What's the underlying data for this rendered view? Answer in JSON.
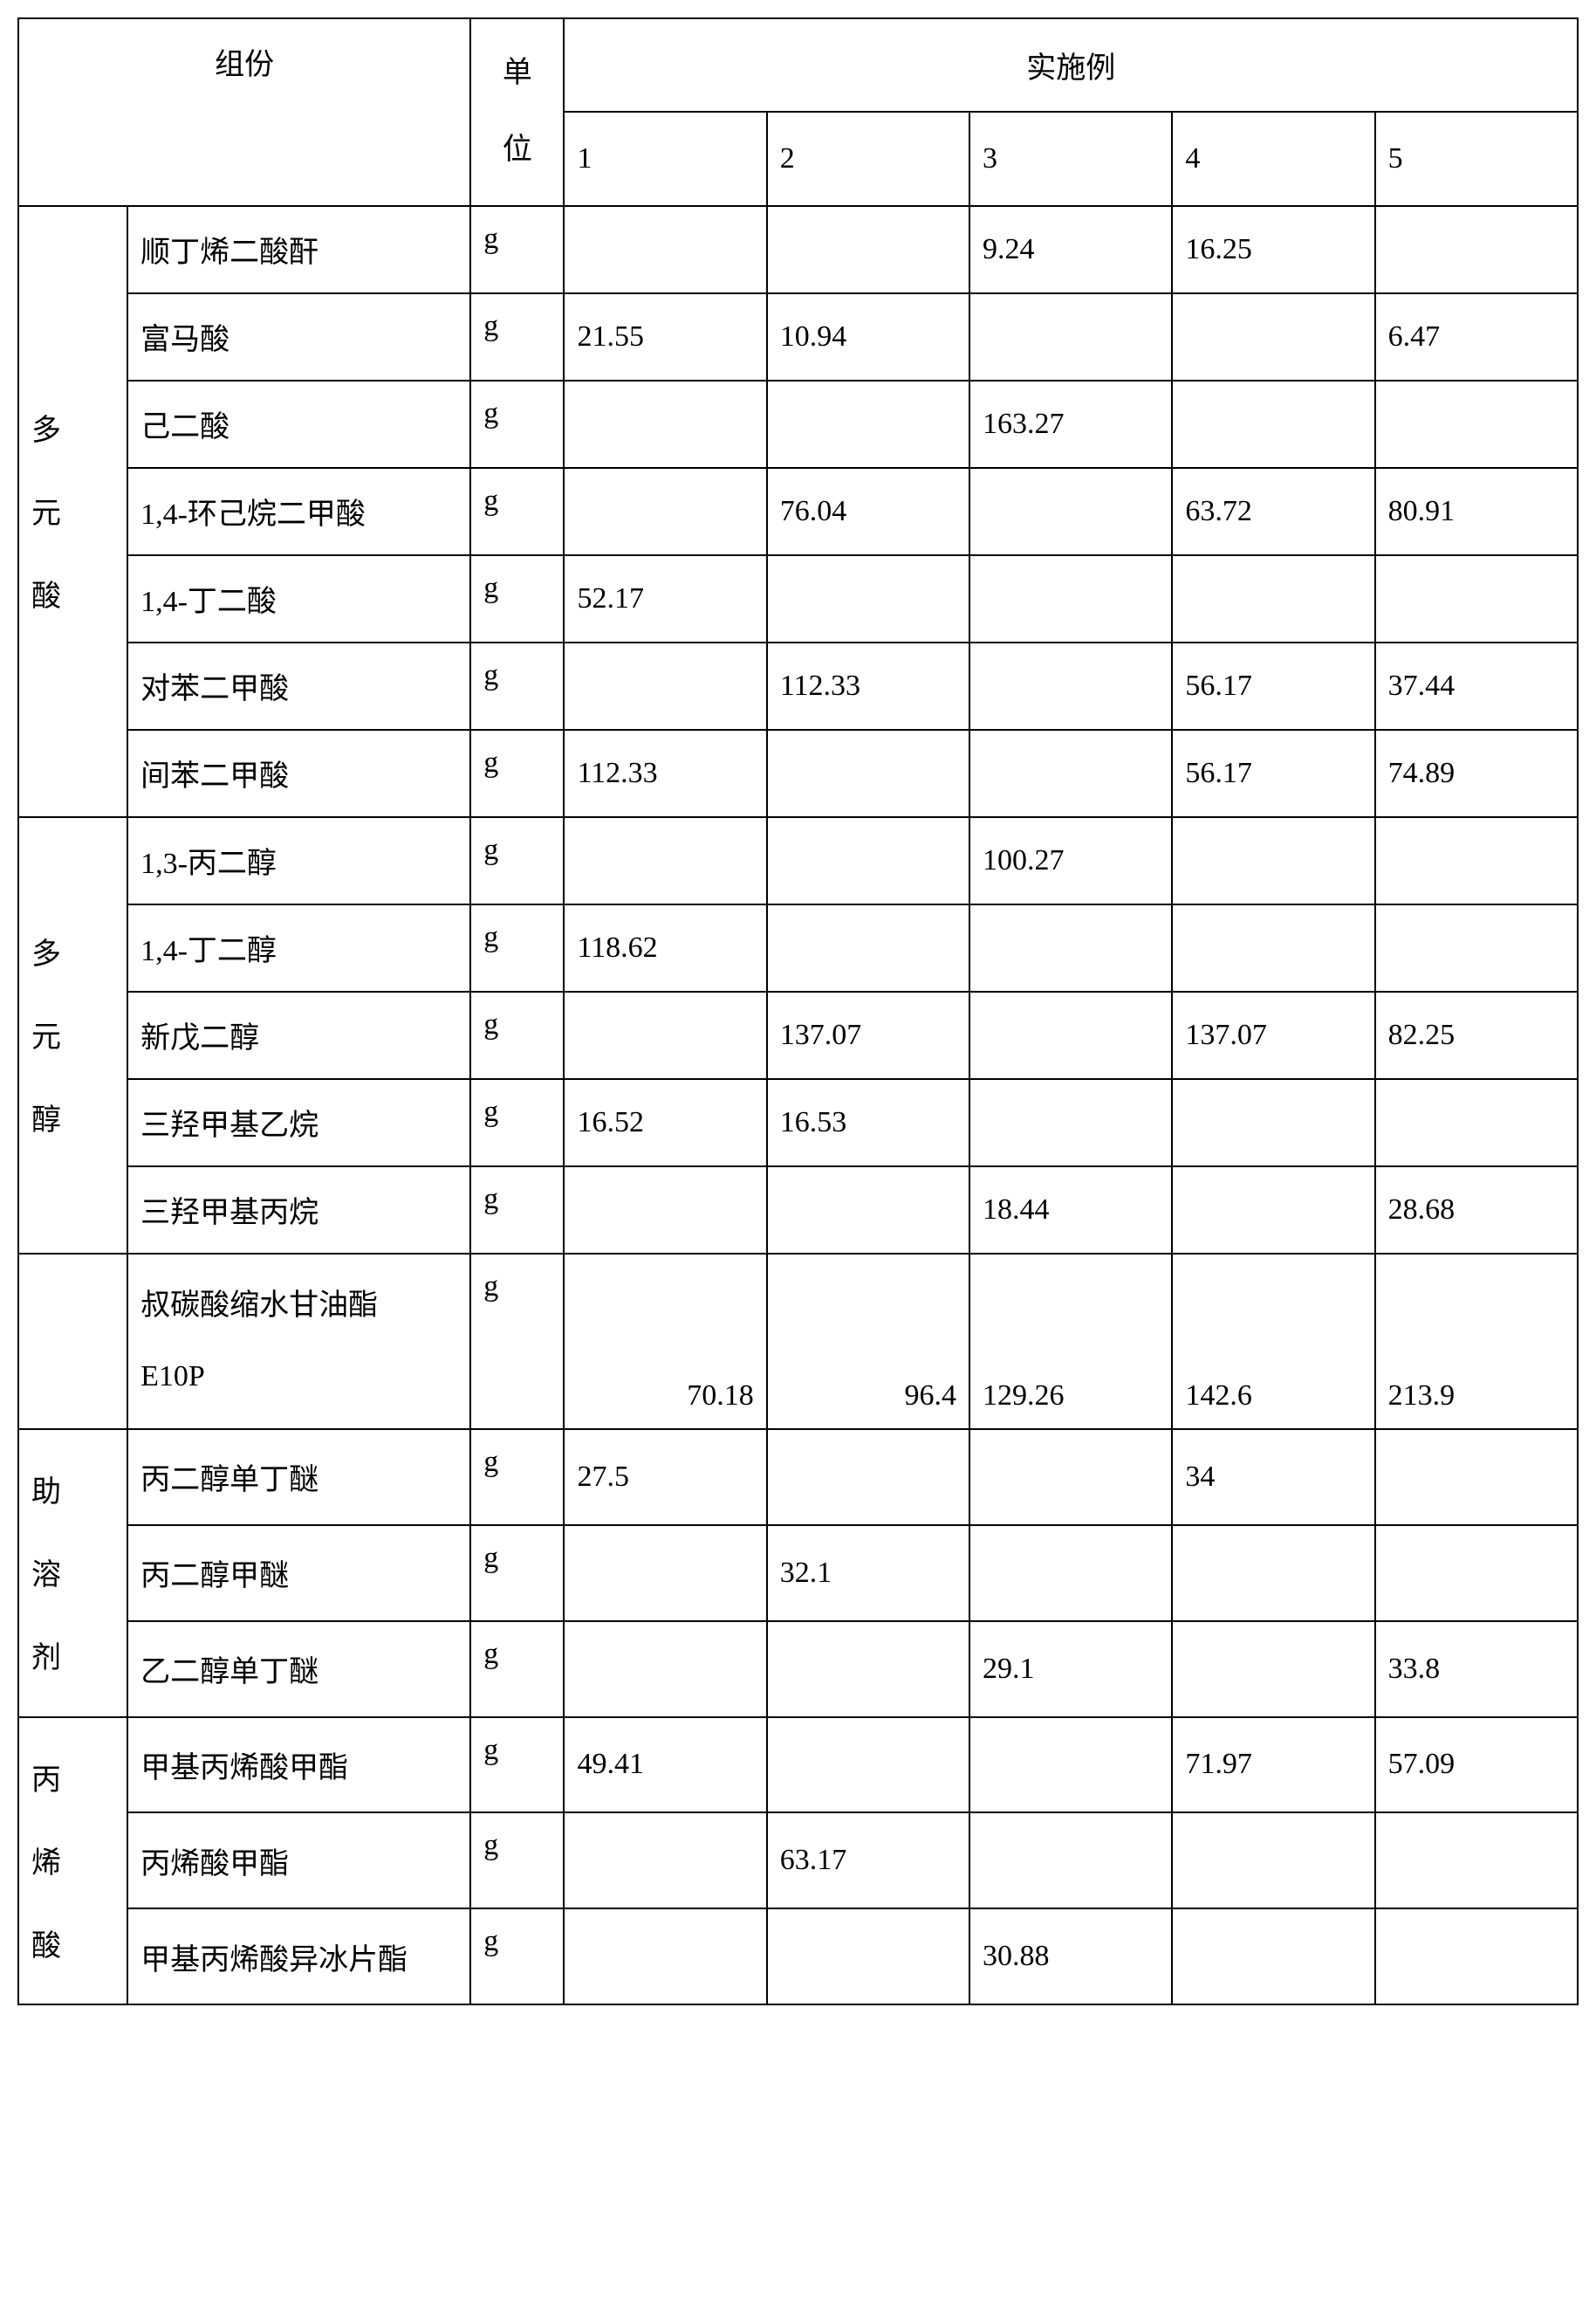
{
  "headers": {
    "component": "组份",
    "unit": "单位",
    "example": "实施例",
    "cols": [
      "1",
      "2",
      "3",
      "4",
      "5"
    ]
  },
  "groups": {
    "acid": "多元酸",
    "alcohol": "多元醇",
    "blank": "",
    "cosolvent": "助溶剂",
    "acrylic": "丙烯酸"
  },
  "rows": {
    "r1": {
      "name": "顺丁烯二酸酐",
      "unit": "g",
      "v": [
        "",
        "",
        "9.24",
        "16.25",
        ""
      ]
    },
    "r2": {
      "name": "富马酸",
      "unit": "g",
      "v": [
        "21.55",
        "10.94",
        "",
        "",
        "6.47"
      ]
    },
    "r3": {
      "name": "己二酸",
      "unit": "g",
      "v": [
        "",
        "",
        "163.27",
        "",
        ""
      ]
    },
    "r4": {
      "name": "1,4-环己烷二甲酸",
      "unit": "g",
      "v": [
        "",
        "76.04",
        "",
        "63.72",
        "80.91"
      ]
    },
    "r5": {
      "name": "1,4-丁二酸",
      "unit": "g",
      "v": [
        "52.17",
        "",
        "",
        "",
        ""
      ]
    },
    "r6": {
      "name": "对苯二甲酸",
      "unit": "g",
      "v": [
        "",
        "112.33",
        "",
        "56.17",
        "37.44"
      ]
    },
    "r7": {
      "name": "间苯二甲酸",
      "unit": "g",
      "v": [
        "112.33",
        "",
        "",
        "56.17",
        "74.89"
      ]
    },
    "r8": {
      "name": "1,3-丙二醇",
      "unit": "g",
      "v": [
        "",
        "",
        "100.27",
        "",
        ""
      ]
    },
    "r9": {
      "name": "1,4-丁二醇",
      "unit": "g",
      "v": [
        "118.62",
        "",
        "",
        "",
        ""
      ]
    },
    "r10": {
      "name": "新戊二醇",
      "unit": "g",
      "v": [
        "",
        "137.07",
        "",
        "137.07",
        "82.25"
      ]
    },
    "r11": {
      "name": "三羟甲基乙烷",
      "unit": "g",
      "v": [
        "16.52",
        "16.53",
        "",
        "",
        ""
      ]
    },
    "r12": {
      "name": "三羟甲基丙烷",
      "unit": "g",
      "v": [
        "",
        "",
        "18.44",
        "",
        "28.68"
      ]
    },
    "r13": {
      "name": "叔碳酸缩水甘油酯E10P",
      "unit": "g",
      "v": [
        "70.18",
        "96.4",
        "129.26",
        "142.6",
        "213.9"
      ]
    },
    "r14": {
      "name": "丙二醇单丁醚",
      "unit": "g",
      "v": [
        "27.5",
        "",
        "",
        "34",
        ""
      ]
    },
    "r15": {
      "name": "丙二醇甲醚",
      "unit": "g",
      "v": [
        "",
        "32.1",
        "",
        "",
        ""
      ]
    },
    "r16": {
      "name": "乙二醇单丁醚",
      "unit": "g",
      "v": [
        "",
        "",
        "29.1",
        "",
        "33.8"
      ]
    },
    "r17": {
      "name": "甲基丙烯酸甲酯",
      "unit": "g",
      "v": [
        "49.41",
        "",
        "",
        "71.97",
        "57.09"
      ]
    },
    "r18": {
      "name": "丙烯酸甲酯",
      "unit": "g",
      "v": [
        "",
        "63.17",
        "",
        "",
        ""
      ]
    },
    "r19": {
      "name": "甲基丙烯酸异冰片酯",
      "unit": "g",
      "v": [
        "",
        "",
        "30.88",
        "",
        ""
      ]
    }
  },
  "e10p_line1": "叔碳酸缩水甘油酯",
  "e10p_line2": "E10P"
}
